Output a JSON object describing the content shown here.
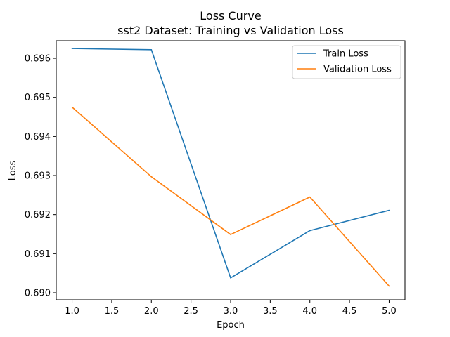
{
  "chart_data": {
    "type": "line",
    "title": "Loss Curve",
    "subtitle": "sst2 Dataset: Training vs Validation Loss",
    "xlabel": "Epoch",
    "ylabel": "Loss",
    "xlim": [
      0.8,
      5.2
    ],
    "ylim": [
      0.68982,
      0.69645
    ],
    "x_ticks": [
      1.0,
      1.5,
      2.0,
      2.5,
      3.0,
      3.5,
      4.0,
      4.5,
      5.0
    ],
    "x_tick_labels": [
      "1.0",
      "1.5",
      "2.0",
      "2.5",
      "3.0",
      "3.5",
      "4.0",
      "4.5",
      "5.0"
    ],
    "y_ticks": [
      0.69,
      0.691,
      0.692,
      0.693,
      0.694,
      0.695,
      0.696
    ],
    "y_tick_labels": [
      "0.690",
      "0.691",
      "0.692",
      "0.693",
      "0.694",
      "0.695",
      "0.696"
    ],
    "grid": false,
    "legend_position": "top-right",
    "x": [
      1,
      2,
      3,
      4,
      5
    ],
    "series": [
      {
        "name": "Train Loss",
        "color": "#1f77b4",
        "values": [
          0.69625,
          0.69622,
          0.69038,
          0.69159,
          0.69211
        ]
      },
      {
        "name": "Validation Loss",
        "color": "#ff7f0e",
        "values": [
          0.69475,
          0.69297,
          0.69149,
          0.69245,
          0.69017
        ]
      }
    ]
  }
}
